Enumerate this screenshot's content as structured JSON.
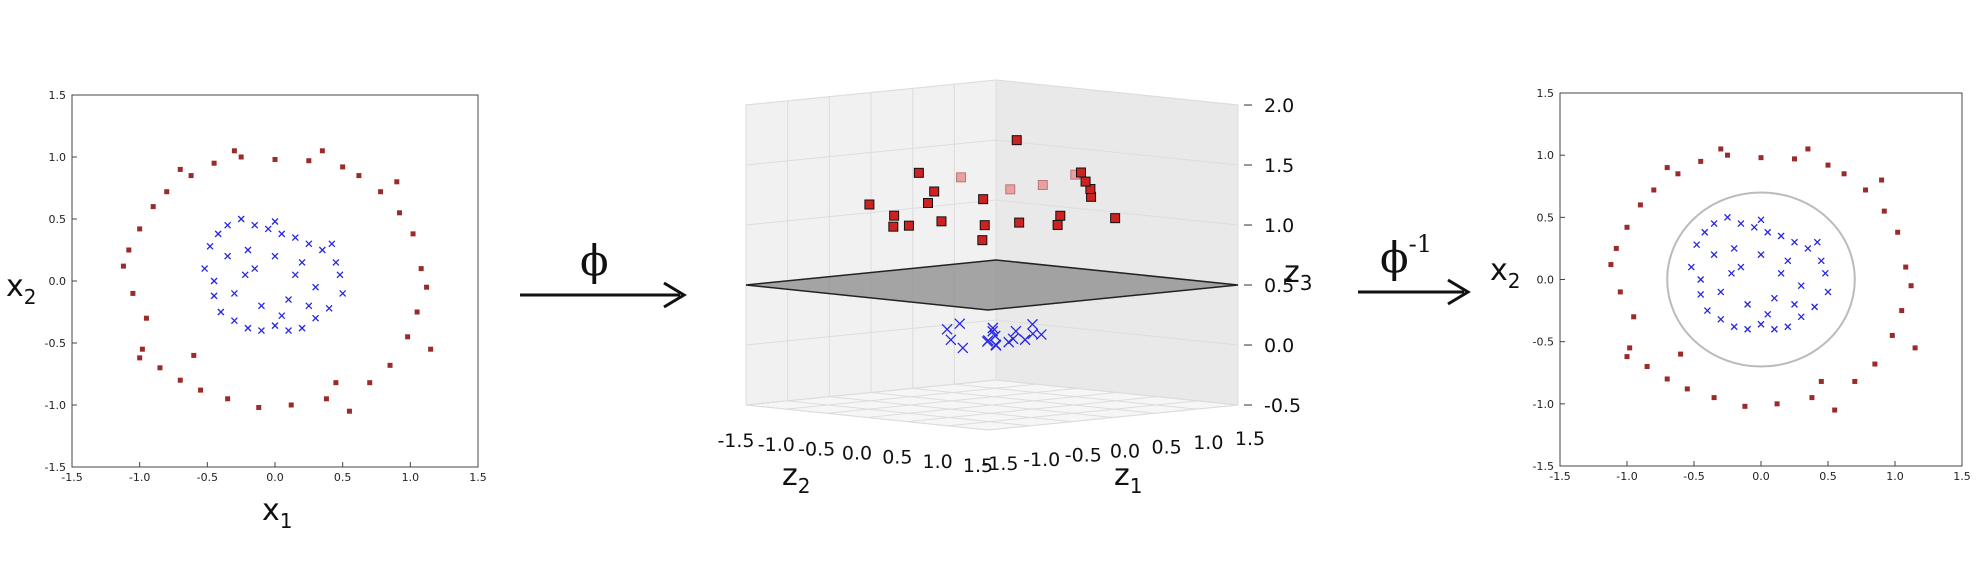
{
  "panels": {
    "left": {
      "xlabel": "x",
      "xlabel_sub": "1",
      "ylabel": "x",
      "ylabel_sub": "2"
    },
    "middle": {
      "xlabel": "z",
      "xlabel_sub": "2",
      "ylabel": "z",
      "ylabel_sub": "1",
      "zlabel": "z",
      "zlabel_sub": "3"
    },
    "right": {
      "ylabel": "x",
      "ylabel_sub": "2"
    }
  },
  "arrows": {
    "forward_label": "ϕ",
    "inverse_label": "ϕ",
    "inverse_sup": "-1"
  },
  "colors": {
    "outer_class": "#9b2a2a",
    "inner_class": "#2626e6",
    "decision_boundary": "#bbbbbb",
    "plane": "#555555"
  },
  "chart_data": [
    {
      "type": "scatter",
      "title": "",
      "xlabel": "x1",
      "ylabel": "x2",
      "xlim": [
        -1.5,
        1.5
      ],
      "ylim": [
        -1.5,
        1.5
      ],
      "xticks": [
        "-1.5",
        "-1.0",
        "-0.5",
        "0.0",
        "0.5",
        "1.0",
        "1.5"
      ],
      "yticks": [
        "-1.5",
        "-1.0",
        "-0.5",
        "0.0",
        "0.5",
        "1.0",
        "1.5"
      ],
      "series": [
        {
          "marker": "square",
          "color": "#9b2a2a",
          "points": [
            [
              -1.12,
              0.12
            ],
            [
              -1.08,
              0.25
            ],
            [
              -1.05,
              -0.1
            ],
            [
              -1.0,
              0.42
            ],
            [
              -0.98,
              -0.55
            ],
            [
              -0.95,
              -0.3
            ],
            [
              -0.9,
              0.6
            ],
            [
              -0.85,
              -0.7
            ],
            [
              -0.8,
              0.72
            ],
            [
              -0.7,
              -0.8
            ],
            [
              -0.62,
              0.85
            ],
            [
              -0.55,
              -0.88
            ],
            [
              -0.45,
              0.95
            ],
            [
              -0.35,
              -0.95
            ],
            [
              -0.25,
              1.0
            ],
            [
              -0.12,
              -1.02
            ],
            [
              0.0,
              0.98
            ],
            [
              0.12,
              -1.0
            ],
            [
              0.25,
              0.97
            ],
            [
              0.38,
              -0.95
            ],
            [
              0.5,
              0.92
            ],
            [
              0.55,
              -1.05
            ],
            [
              0.62,
              0.85
            ],
            [
              0.7,
              -0.82
            ],
            [
              0.78,
              0.72
            ],
            [
              0.85,
              -0.68
            ],
            [
              0.92,
              0.55
            ],
            [
              0.98,
              -0.45
            ],
            [
              1.02,
              0.38
            ],
            [
              1.05,
              -0.25
            ],
            [
              1.08,
              0.1
            ],
            [
              1.12,
              -0.05
            ],
            [
              1.15,
              -0.55
            ],
            [
              -1.0,
              -0.62
            ],
            [
              -0.7,
              0.9
            ],
            [
              0.35,
              1.05
            ],
            [
              0.9,
              0.8
            ],
            [
              -0.3,
              1.05
            ],
            [
              0.45,
              -0.82
            ],
            [
              -0.6,
              -0.6
            ]
          ]
        },
        {
          "marker": "x",
          "color": "#2626e6",
          "points": [
            [
              -0.52,
              0.1
            ],
            [
              -0.48,
              0.28
            ],
            [
              -0.45,
              -0.12
            ],
            [
              -0.42,
              0.38
            ],
            [
              -0.4,
              -0.25
            ],
            [
              -0.35,
              0.45
            ],
            [
              -0.3,
              -0.32
            ],
            [
              -0.25,
              0.5
            ],
            [
              -0.2,
              -0.38
            ],
            [
              -0.15,
              0.45
            ],
            [
              -0.1,
              -0.4
            ],
            [
              -0.05,
              0.42
            ],
            [
              0.0,
              -0.36
            ],
            [
              0.05,
              0.38
            ],
            [
              0.1,
              -0.4
            ],
            [
              0.15,
              0.35
            ],
            [
              0.2,
              -0.38
            ],
            [
              0.25,
              0.3
            ],
            [
              0.3,
              -0.3
            ],
            [
              0.35,
              0.25
            ],
            [
              0.4,
              -0.22
            ],
            [
              0.45,
              0.15
            ],
            [
              0.48,
              0.05
            ],
            [
              0.5,
              -0.1
            ],
            [
              -0.35,
              0.2
            ],
            [
              -0.2,
              0.25
            ],
            [
              0.0,
              0.2
            ],
            [
              0.2,
              0.15
            ],
            [
              -0.3,
              -0.1
            ],
            [
              0.3,
              -0.05
            ],
            [
              -0.1,
              -0.2
            ],
            [
              0.1,
              -0.15
            ],
            [
              -0.22,
              0.05
            ],
            [
              0.15,
              0.05
            ],
            [
              0.42,
              0.3
            ],
            [
              -0.45,
              0.0
            ],
            [
              0.0,
              0.48
            ],
            [
              0.05,
              -0.28
            ],
            [
              -0.15,
              0.1
            ],
            [
              0.25,
              -0.2
            ]
          ]
        }
      ]
    },
    {
      "type": "scatter",
      "title": "",
      "xlabel": "z2",
      "ylabel": "z1",
      "zlabel": "z3",
      "xlim": [
        -1.5,
        1.5
      ],
      "ylim": [
        -1.5,
        1.5
      ],
      "zlim": [
        -0.5,
        2.0
      ],
      "xticks": [
        "-1.5",
        "-1.0",
        "-0.5",
        "0.0",
        "0.5",
        "1.0",
        "1.5"
      ],
      "yticks": [
        "-1.5",
        "-1.0",
        "-0.5",
        "0.0",
        "0.5",
        "1.0",
        "1.5"
      ],
      "zticks": [
        "-0.5",
        "0.0",
        "0.5",
        "1.0",
        "1.5",
        "2.0"
      ],
      "plane_z": 0.5,
      "series": [
        {
          "marker": "square",
          "color": "#9b2a2a",
          "points": [
            [
              -1.0,
              0.2,
              1.1
            ],
            [
              -0.9,
              0.5,
              1.3
            ],
            [
              -0.8,
              -0.4,
              1.05
            ],
            [
              -0.6,
              0.8,
              1.2
            ],
            [
              -0.5,
              -0.7,
              1.0
            ],
            [
              -0.3,
              0.9,
              1.25
            ],
            [
              -0.1,
              -0.9,
              1.05
            ],
            [
              0.0,
              1.0,
              1.35
            ],
            [
              0.2,
              -0.8,
              1.1
            ],
            [
              0.35,
              0.85,
              1.2
            ],
            [
              0.5,
              -0.6,
              0.95
            ],
            [
              0.6,
              0.6,
              1.3
            ],
            [
              0.75,
              -0.4,
              1.1
            ],
            [
              0.85,
              0.3,
              1.4
            ],
            [
              0.95,
              -0.1,
              1.15
            ],
            [
              1.0,
              0.1,
              1.5
            ],
            [
              -0.7,
              -0.2,
              1.4
            ],
            [
              0.1,
              0.2,
              1.7
            ],
            [
              0.4,
              0.4,
              1.0
            ],
            [
              -0.4,
              0.3,
              0.95
            ],
            [
              0.2,
              -0.3,
              1.25
            ],
            [
              -0.2,
              -0.5,
              1.3
            ],
            [
              0.7,
              0.8,
              1.05
            ],
            [
              -0.9,
              -0.6,
              1.15
            ]
          ]
        },
        {
          "marker": "x",
          "color": "#2626e6",
          "points": [
            [
              -0.4,
              0.0,
              0.15
            ],
            [
              -0.3,
              0.3,
              0.1
            ],
            [
              -0.2,
              -0.3,
              0.05
            ],
            [
              -0.1,
              0.35,
              0.02
            ],
            [
              0.0,
              -0.35,
              0.0
            ],
            [
              0.1,
              0.3,
              0.03
            ],
            [
              0.2,
              -0.25,
              0.06
            ],
            [
              0.3,
              0.2,
              0.1
            ],
            [
              0.4,
              -0.1,
              0.15
            ],
            [
              0.45,
              0.05,
              0.2
            ],
            [
              -0.35,
              -0.2,
              0.12
            ],
            [
              0.25,
              0.35,
              0.08
            ],
            [
              -0.15,
              0.1,
              0.02
            ],
            [
              0.15,
              -0.1,
              0.02
            ],
            [
              0.0,
              0.2,
              0.01
            ],
            [
              -0.25,
              0.25,
              0.08
            ],
            [
              0.35,
              -0.3,
              0.12
            ],
            [
              0.05,
              0.0,
              0.0
            ]
          ]
        }
      ]
    },
    {
      "type": "scatter",
      "title": "",
      "xlabel": "",
      "ylabel": "x2",
      "xlim": [
        -1.5,
        1.5
      ],
      "ylim": [
        -1.5,
        1.5
      ],
      "xticks": [
        "-1.5",
        "-1.0",
        "-0.5",
        "0.0",
        "0.5",
        "1.0",
        "1.5"
      ],
      "yticks": [
        "-1.5",
        "-1.0",
        "-0.5",
        "0.0",
        "0.5",
        "1.0",
        "1.5"
      ],
      "decision_boundary": {
        "shape": "circle",
        "center": [
          0.0,
          0.0
        ],
        "radius": 0.7
      },
      "series": [
        {
          "marker": "square",
          "color": "#9b2a2a",
          "same_as_panel": 0
        },
        {
          "marker": "x",
          "color": "#2626e6",
          "same_as_panel": 0
        }
      ]
    }
  ]
}
